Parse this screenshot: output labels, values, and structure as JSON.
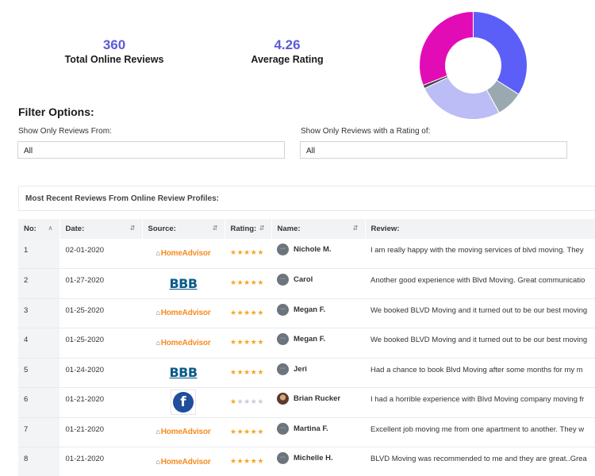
{
  "stats": {
    "total_reviews": {
      "value": "360",
      "label": "Total Online Reviews"
    },
    "avg_rating": {
      "value": "4.26",
      "label": "Average Rating"
    }
  },
  "chart_data": {
    "type": "pie",
    "values": [
      34,
      8,
      26,
      1,
      31
    ],
    "colors": [
      "#5b5ff7",
      "#9aa9b0",
      "#bcbcf6",
      "#444444",
      "#e20cb6"
    ]
  },
  "filters": {
    "title": "Filter Options:",
    "source": {
      "label": "Show Only Reviews From:",
      "value": "All"
    },
    "rating": {
      "label": "Show Only Reviews with a Rating of:",
      "value": "All"
    }
  },
  "recent_title": "Most Recent Reviews From Online Review Profiles:",
  "table": {
    "headers": [
      "No:",
      "Date:",
      "Source:",
      "Rating:",
      "Name:",
      "Review:"
    ],
    "rows": [
      {
        "no": "1",
        "date": "02-01-2020",
        "source": "HomeAdvisor",
        "rating": 5,
        "name": "Nichole M.",
        "review": "I am really happy with the moving services of blvd moving. They"
      },
      {
        "no": "2",
        "date": "01-27-2020",
        "source": "BBB",
        "rating": 5,
        "name": "Carol",
        "review": "Another good experience with Blvd Moving. Great communicatio"
      },
      {
        "no": "3",
        "date": "01-25-2020",
        "source": "HomeAdvisor",
        "rating": 5,
        "name": "Megan F.",
        "review": "We booked BLVD Moving and it turned out to be our best moving"
      },
      {
        "no": "4",
        "date": "01-25-2020",
        "source": "HomeAdvisor",
        "rating": 5,
        "name": "Megan F.",
        "review": "We booked BLVD Moving and it turned out to be our best moving"
      },
      {
        "no": "5",
        "date": "01-24-2020",
        "source": "BBB",
        "rating": 5,
        "name": "Jeri",
        "review": "Had a chance to book Blvd Moving after some months for my m"
      },
      {
        "no": "6",
        "date": "01-21-2020",
        "source": "Facebook",
        "rating": 1,
        "name": "Brian Rucker",
        "review": "I had a horrible experience with Blvd Moving company moving fr"
      },
      {
        "no": "7",
        "date": "01-21-2020",
        "source": "HomeAdvisor",
        "rating": 5,
        "name": "Martina F.",
        "review": "Excellent job moving me from one apartment to another. They w"
      },
      {
        "no": "8",
        "date": "01-21-2020",
        "source": "HomeAdvisor",
        "rating": 5,
        "name": "Michelle H.",
        "review": "BLVD Moving was recommended to me and they are great..Grea"
      }
    ]
  }
}
